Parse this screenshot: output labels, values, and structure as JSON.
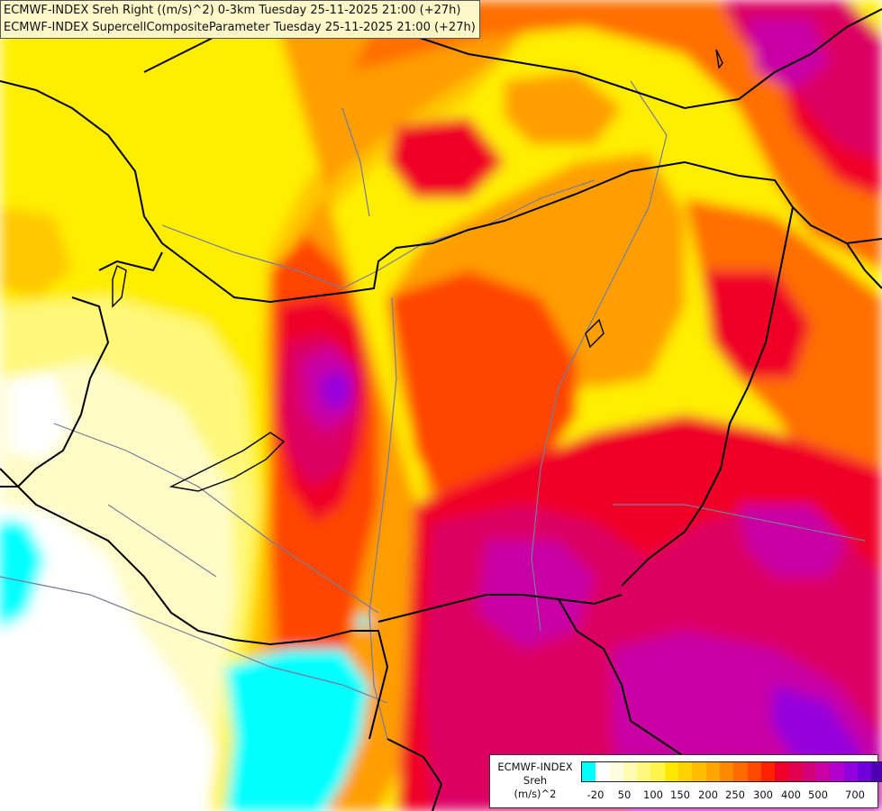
{
  "header": {
    "line1": "ECMWF-INDEX Sreh Right ((m/s)^2) 0-3km Tuesday 25-11-2025 21:00 (+27h)",
    "line2": "ECMWF-INDEX SupercellCompositeParameter Tuesday 25-11-2025 21:00 (+27h)"
  },
  "legend": {
    "line1": "ECMWF-INDEX",
    "line2": "Sreh",
    "line3": "(m/s)^2",
    "colors": [
      "#00ffff",
      "#ffffff",
      "#fffde0",
      "#fffbb0",
      "#fff880",
      "#fff44c",
      "#ffe800",
      "#ffd200",
      "#ffbc00",
      "#ffa400",
      "#ff8800",
      "#ff6a00",
      "#ff4800",
      "#ff2200",
      "#f00028",
      "#e2004e",
      "#d40078",
      "#c800a4",
      "#b400cc",
      "#9200e0",
      "#7000dc",
      "#5000b4",
      "#2c008c",
      "#120060"
    ],
    "tick_labels": [
      "-20",
      "50",
      "100",
      "150",
      "200",
      "250",
      "300",
      "400",
      "500",
      "700"
    ]
  },
  "map": {
    "field_colors": {
      "cyan": "#00ffff",
      "white": "#ffffff",
      "pale": "#fffcc8",
      "light_yellow": "#fff87a",
      "yellow": "#ffee00",
      "gold": "#ffc800",
      "orange": "#ff9e00",
      "dark_orange": "#ff6e00",
      "red_orange": "#ff4400",
      "red": "#f00028",
      "crimson": "#dc0064",
      "magenta": "#c800a4",
      "purple": "#9600dc"
    },
    "border_color": "#000000",
    "river_color": "#7a7a9a"
  }
}
